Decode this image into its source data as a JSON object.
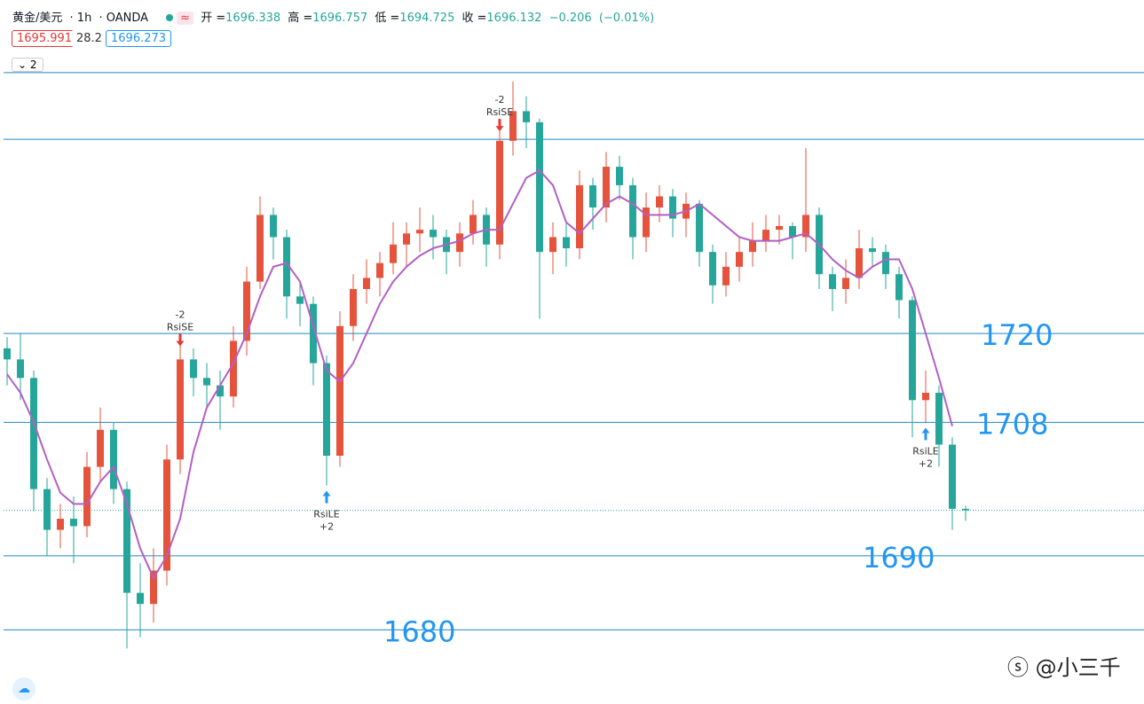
{
  "header": {
    "symbol": "黄金/美元",
    "interval": "1h",
    "broker": "OANDA",
    "open_label": "开",
    "open": 1696.338,
    "high_label": "高",
    "high": 1696.757,
    "low_label": "低",
    "low": 1694.725,
    "close_label": "收",
    "close": 1696.132,
    "change": "−0.206",
    "change_pct": "(−0.01%)",
    "bid": "1695.991",
    "spread": "28.2",
    "ask": "1696.273",
    "collapse": "2"
  },
  "chart_data": {
    "type": "candlestick",
    "ylim": [
      1670,
      1765
    ],
    "up_color": "#e5533d",
    "down_color": "#26a69a",
    "ma_color": "#b35fc4",
    "candles": [
      [
        1718,
        1719.5,
        1713,
        1716.5
      ],
      [
        1716.5,
        1720,
        1711,
        1714
      ],
      [
        1714,
        1715,
        1696,
        1699
      ],
      [
        1699,
        1700.5,
        1690,
        1693.5
      ],
      [
        1693.5,
        1697,
        1691,
        1695
      ],
      [
        1695,
        1698,
        1689,
        1694
      ],
      [
        1694,
        1704,
        1692.5,
        1702
      ],
      [
        1702,
        1710,
        1700,
        1707
      ],
      [
        1707,
        1708,
        1697,
        1699
      ],
      [
        1699,
        1700,
        1677.5,
        1685
      ],
      [
        1685,
        1689,
        1679,
        1683.5
      ],
      [
        1683.5,
        1691,
        1681,
        1688
      ],
      [
        1688,
        1705,
        1686,
        1703
      ],
      [
        1703,
        1719,
        1701,
        1716.5
      ],
      [
        1716.5,
        1718,
        1711.5,
        1714
      ],
      [
        1714,
        1716,
        1710,
        1713
      ],
      [
        1713,
        1715,
        1707,
        1711.5
      ],
      [
        1711.5,
        1721,
        1710,
        1719
      ],
      [
        1719,
        1729,
        1717,
        1727
      ],
      [
        1727,
        1738.5,
        1726,
        1736
      ],
      [
        1736,
        1737,
        1730,
        1733
      ],
      [
        1733,
        1734,
        1722,
        1725
      ],
      [
        1725,
        1727,
        1721,
        1724
      ],
      [
        1724,
        1725,
        1713,
        1716
      ],
      [
        1716,
        1717,
        1699.5,
        1703.5
      ],
      [
        1703.5,
        1723,
        1702,
        1721
      ],
      [
        1721,
        1728,
        1719,
        1726
      ],
      [
        1726,
        1730,
        1724,
        1727.5
      ],
      [
        1727.5,
        1731,
        1725,
        1729.5
      ],
      [
        1729.5,
        1735,
        1728,
        1732
      ],
      [
        1732,
        1735,
        1729,
        1733.5
      ],
      [
        1733.5,
        1737,
        1731,
        1734
      ],
      [
        1734,
        1736,
        1730,
        1733
      ],
      [
        1733,
        1734,
        1728,
        1731
      ],
      [
        1731,
        1735,
        1729,
        1733.5
      ],
      [
        1733.5,
        1738,
        1732,
        1736
      ],
      [
        1736,
        1737,
        1729,
        1732
      ],
      [
        1732,
        1748,
        1730,
        1746
      ],
      [
        1746,
        1754,
        1744,
        1750
      ],
      [
        1750,
        1752,
        1745,
        1748.5
      ],
      [
        1748.5,
        1749,
        1722,
        1731
      ],
      [
        1731,
        1735,
        1728,
        1733
      ],
      [
        1733,
        1735,
        1729,
        1731.5
      ],
      [
        1731.5,
        1742,
        1730,
        1740
      ],
      [
        1740,
        1741,
        1734,
        1737
      ],
      [
        1737,
        1744.5,
        1735,
        1742.5
      ],
      [
        1742.5,
        1744,
        1738,
        1740
      ],
      [
        1740,
        1741,
        1730,
        1733
      ],
      [
        1733,
        1739,
        1731,
        1737
      ],
      [
        1737,
        1740,
        1735,
        1738.5
      ],
      [
        1738.5,
        1739.5,
        1733,
        1735.5
      ],
      [
        1735.5,
        1739,
        1733,
        1737.5
      ],
      [
        1737.5,
        1738,
        1729,
        1731
      ],
      [
        1731,
        1732,
        1724,
        1726.5
      ],
      [
        1726.5,
        1731,
        1725,
        1729
      ],
      [
        1729,
        1733,
        1727,
        1731
      ],
      [
        1731,
        1735,
        1729,
        1732.5
      ],
      [
        1732.5,
        1736,
        1731,
        1734
      ],
      [
        1734,
        1736,
        1732,
        1734.5
      ],
      [
        1734.5,
        1735,
        1730,
        1733
      ],
      [
        1733,
        1745,
        1731,
        1736
      ],
      [
        1736,
        1737,
        1726,
        1728
      ],
      [
        1728,
        1729,
        1723,
        1726
      ],
      [
        1726,
        1730,
        1724,
        1727.5
      ],
      [
        1727.5,
        1734,
        1726,
        1731.5
      ],
      [
        1731.5,
        1733,
        1729,
        1731
      ],
      [
        1731,
        1732,
        1726,
        1728
      ],
      [
        1728,
        1729,
        1722,
        1724.5
      ],
      [
        1724.5,
        1725,
        1706,
        1711
      ],
      [
        1711,
        1715,
        1708,
        1712
      ],
      [
        1712,
        1713,
        1702,
        1705
      ],
      [
        1705,
        1706,
        1693.5,
        1696.338
      ]
    ],
    "ma": [
      1714.5,
      1712,
      1708,
      1703,
      1698.5,
      1697,
      1697,
      1700,
      1702,
      1697,
      1691,
      1687,
      1690,
      1695,
      1704,
      1710,
      1713,
      1716,
      1720,
      1725,
      1729,
      1729.5,
      1727,
      1721,
      1715,
      1713.5,
      1716,
      1720,
      1724,
      1727,
      1729,
      1730.5,
      1731.5,
      1732,
      1732.5,
      1733.5,
      1734,
      1734,
      1737.5,
      1741,
      1742,
      1740,
      1735,
      1733.5,
      1735.5,
      1737.5,
      1738.5,
      1737.5,
      1736,
      1736,
      1736,
      1736.5,
      1737.5,
      1736,
      1734.5,
      1733,
      1732.5,
      1732.5,
      1732.5,
      1733,
      1733.5,
      1732,
      1730,
      1728.5,
      1727.5,
      1729,
      1730,
      1730,
      1726,
      1720,
      1714,
      1707.5
    ],
    "levels": [
      {
        "value": 1755.2
      },
      {
        "value": 1746.2
      },
      {
        "value": 1720,
        "label": "1720"
      },
      {
        "value": 1708,
        "label": "1708"
      },
      {
        "value": 1690,
        "label": "1690"
      },
      {
        "value": 1680,
        "label": "1680"
      }
    ],
    "signals": [
      {
        "name": "RsiSE",
        "qty": "-2"
      },
      {
        "name": "RsiLE",
        "qty": "+2"
      },
      {
        "name": "RsiSE",
        "qty": "-2"
      },
      {
        "name": "RsiLE",
        "qty": "+2"
      }
    ]
  },
  "watermark": "@小三千"
}
